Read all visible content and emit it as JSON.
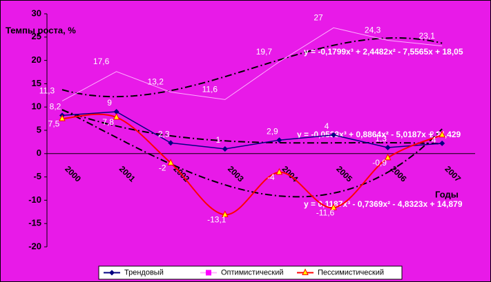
{
  "chart_data": {
    "type": "line",
    "y_label": "Темпы роста, %",
    "x_label": "Годы",
    "categories": [
      "2000",
      "2001",
      "2002",
      "2003",
      "2004",
      "2005",
      "2006",
      "2007"
    ],
    "series": [
      {
        "name": "Трендовый",
        "color": "#000080",
        "marker": "diamond",
        "values": [
          8.2,
          9,
          2.3,
          1,
          2.9,
          4,
          1.3,
          2.2
        ],
        "value_labels": [
          "8,2",
          "9",
          "2,3",
          "1",
          "2,9",
          "4",
          "1,3",
          "2,2"
        ],
        "trend_equation": "y = -0,0533x³ + 0,8864x² - 5,0187x + 14,429"
      },
      {
        "name": "Оптимистический",
        "color": "#ffb0ff",
        "marker": "none",
        "values": [
          11.3,
          17.6,
          13.2,
          11.6,
          19.7,
          27,
          24.3,
          23.1
        ],
        "value_labels": [
          "11,3",
          "17,6",
          "13,2",
          "11,6",
          "19,7",
          "27",
          "24,3",
          "23,1"
        ],
        "trend_equation": "y = -0,1799x³ + 2,4482x² - 7,5565x + 18,05"
      },
      {
        "name": "Пессимистический",
        "color": "#ff0000",
        "marker": "triangle",
        "values": [
          7.5,
          7.8,
          -2,
          -13.1,
          -4,
          -11.6,
          -0.9,
          4
        ],
        "value_labels": [
          "7,5",
          "7,8",
          "-2",
          "-13,1",
          "-4",
          "-11,6",
          "-0,9",
          "4"
        ],
        "trend_equation": "y = 0,1187x³ - 0,7369x² - 4,8323x + 14,879"
      }
    ],
    "ylim": [
      -20,
      30
    ],
    "yticks": [
      -20,
      -15,
      -10,
      -5,
      0,
      5,
      10,
      15,
      20,
      25,
      30
    ],
    "grid": false,
    "background": "#e81ae8",
    "trend_color": "#000000"
  }
}
